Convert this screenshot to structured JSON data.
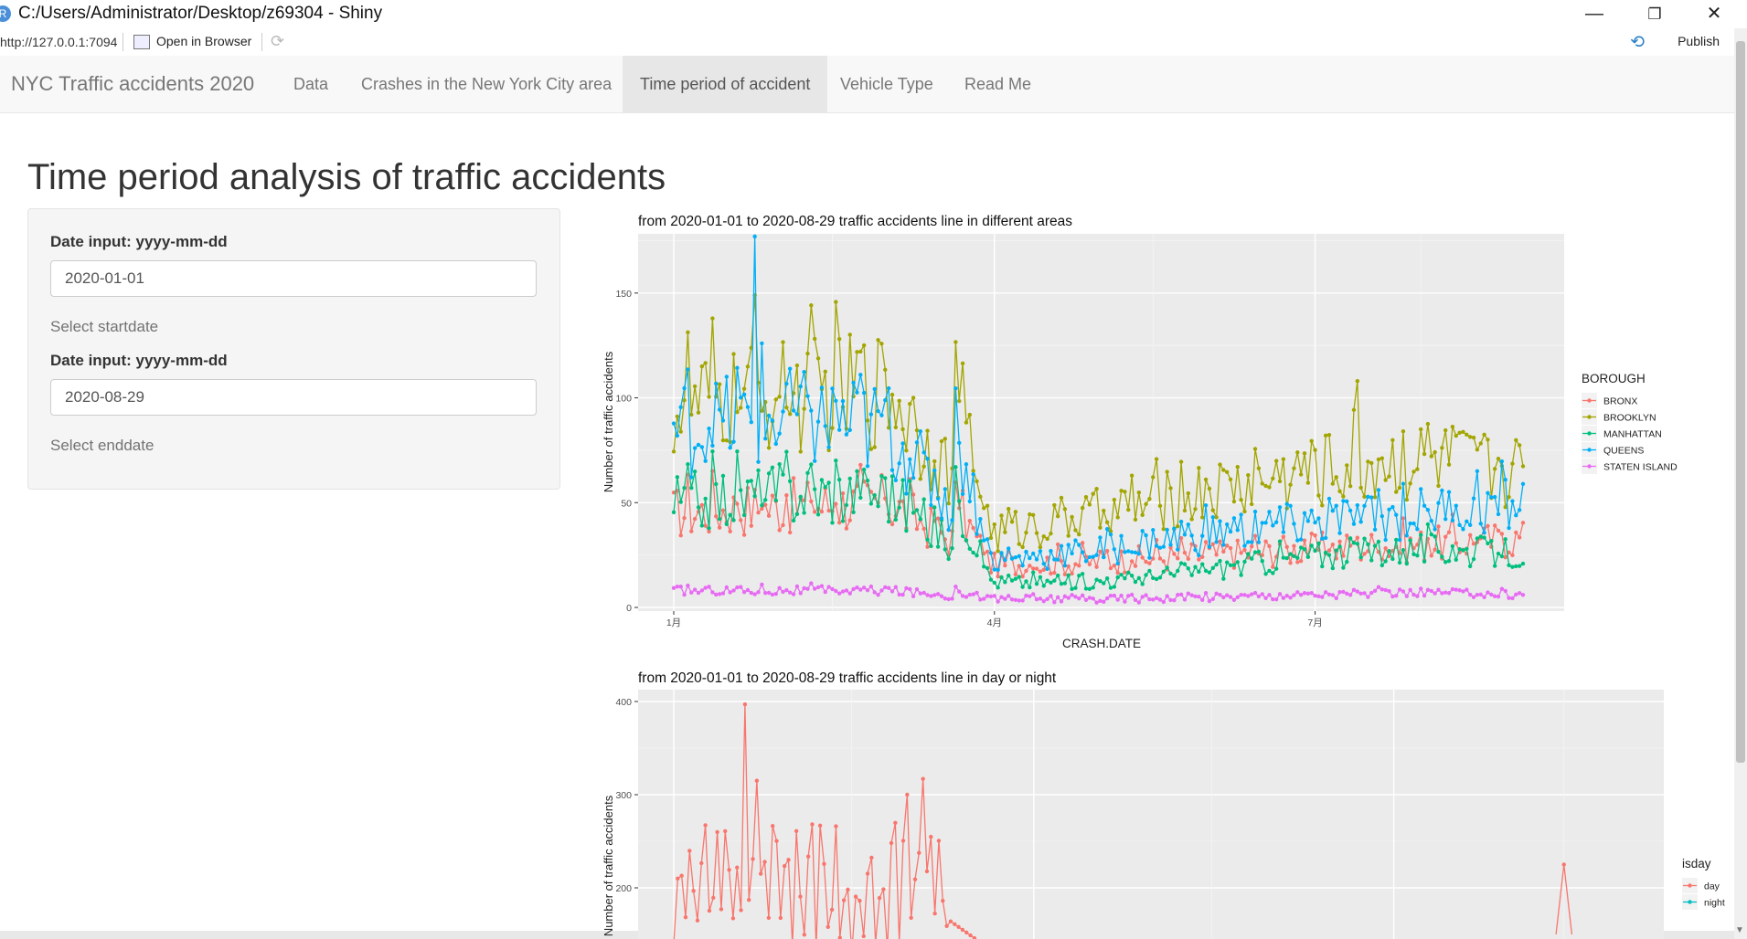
{
  "window": {
    "title": "C:/Users/Administrator/Desktop/z69304 - Shiny",
    "app_icon": "R",
    "minimize": "—",
    "restore": "❐",
    "close": "✕"
  },
  "address_bar": {
    "url": "http://127.0.0.1:7094",
    "open_in_browser": "Open in Browser",
    "publish": "Publish"
  },
  "navbar": {
    "brand": "NYC Traffic accidents 2020",
    "tabs": [
      {
        "label": "Data",
        "active": false
      },
      {
        "label": "Crashes in the New York City area",
        "active": false
      },
      {
        "label": "Time period of accident",
        "active": true
      },
      {
        "label": "Vehicle Type",
        "active": false
      },
      {
        "label": "Read Me",
        "active": false
      }
    ]
  },
  "page": {
    "title": "Time period analysis of traffic accidents"
  },
  "sidebar": {
    "start": {
      "label": "Date input: yyyy-mm-dd",
      "value": "2020-01-01",
      "help": "Select startdate"
    },
    "end": {
      "label": "Date input: yyyy-mm-dd",
      "value": "2020-08-29",
      "help": "Select enddate"
    }
  },
  "chart_data": [
    {
      "type": "line",
      "title": "from 2020-01-01 to 2020-08-29 traffic accidents line in different areas",
      "xlabel": "CRASH.DATE",
      "ylabel": "Number of traffic accidents",
      "x_range": [
        "2020-01-01",
        "2020-08-29"
      ],
      "x_tick_labels": [
        "1月",
        "4月",
        "7月"
      ],
      "ylim": [
        0,
        180
      ],
      "y_ticks": [
        0,
        50,
        100,
        150
      ],
      "grid": true,
      "legend_title": "BOROUGH",
      "legend_position": "right",
      "series": [
        {
          "name": "BRONX",
          "color": "#F8766D",
          "monthly_values": [
            45,
            48,
            50,
            20,
            22,
            25,
            28,
            30,
            33
          ],
          "range": [
            12,
            68
          ]
        },
        {
          "name": "BROOKLYN",
          "color": "#A3A500",
          "monthly_values": [
            95,
            100,
            105,
            35,
            45,
            55,
            65,
            70,
            65
          ],
          "range": [
            9,
            149
          ]
        },
        {
          "name": "MANHATTAN",
          "color": "#00BF7D",
          "monthly_values": [
            50,
            55,
            55,
            12,
            12,
            18,
            25,
            28,
            25
          ],
          "range": [
            5,
            75
          ]
        },
        {
          "name": "QUEENS",
          "color": "#00B0F6",
          "monthly_values": [
            85,
            90,
            85,
            22,
            27,
            35,
            40,
            45,
            50
          ],
          "range": [
            12,
            177
          ]
        },
        {
          "name": "STATEN ISLAND",
          "color": "#E76BF3",
          "monthly_values": [
            8,
            8,
            8,
            4,
            4,
            5,
            6,
            7,
            6
          ],
          "range": [
            0,
            15
          ]
        }
      ]
    },
    {
      "type": "line",
      "title": "from 2020-01-01 to 2020-08-29 traffic accidents line in day or night",
      "xlabel": "",
      "ylabel": "Number of traffic accidents",
      "y_ticks": [
        200,
        300,
        400
      ],
      "grid": true,
      "legend_title": "isday",
      "legend_position": "right",
      "series": [
        {
          "name": "day",
          "color": "#F8766D",
          "visible_max": 397,
          "visible_values_jan_mar": [
            210,
            230,
            250,
            397,
            315,
            260,
            280,
            250,
            280,
            240,
            300,
            317,
            255,
            215
          ]
        },
        {
          "name": "night",
          "color": "#00BFC4"
        }
      ]
    }
  ]
}
